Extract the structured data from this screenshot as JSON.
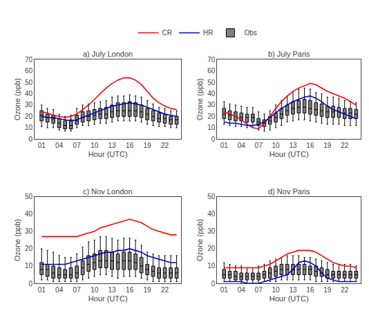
{
  "chart_data": [
    {
      "type": "line",
      "title": "a) July London",
      "xlabel": "Hour (UTC)",
      "ylabel": "Ozone (ppb)",
      "x": [
        1,
        2,
        3,
        4,
        5,
        6,
        7,
        8,
        9,
        10,
        11,
        12,
        13,
        14,
        15,
        16,
        17,
        18,
        19,
        20,
        21,
        22,
        23,
        24
      ],
      "xlim": [
        -0.2,
        24.8
      ],
      "xticks": [
        {
          "value": 1,
          "label": "01"
        },
        {
          "value": 4,
          "label": "04"
        },
        {
          "value": 7,
          "label": "07"
        },
        {
          "value": 10,
          "label": "10"
        },
        {
          "value": 13,
          "label": "13"
        },
        {
          "value": 16,
          "label": "16"
        },
        {
          "value": 19,
          "label": "19"
        },
        {
          "value": 22,
          "label": "22"
        }
      ],
      "ylim": [
        0,
        70
      ],
      "yticks": [
        0,
        10,
        20,
        30,
        40,
        50,
        60,
        70
      ],
      "grid": false,
      "series": [
        {
          "name": "CR",
          "color": "#ff0000",
          "values": [
            24,
            23,
            21,
            20,
            19,
            20,
            22,
            26,
            30,
            35,
            40,
            45,
            49,
            52,
            54,
            54,
            52,
            48,
            42,
            36,
            32,
            29,
            27,
            26
          ]
        },
        {
          "name": "HR",
          "color": "#0000cc",
          "values": [
            20,
            19,
            19,
            18,
            17,
            16,
            17,
            19,
            21,
            23,
            25,
            27,
            29,
            30,
            31,
            32,
            31,
            30,
            28,
            26,
            24,
            22,
            21,
            20
          ]
        },
        {
          "name": "Obs",
          "type": "box",
          "color": "#000000",
          "median": [
            21,
            19,
            18,
            14,
            12,
            12,
            16,
            19,
            20,
            21,
            22,
            22,
            24,
            25,
            25,
            25,
            25,
            24,
            22,
            20,
            18,
            18,
            17,
            17
          ],
          "q1": [
            16,
            15,
            14,
            10,
            9,
            9,
            13,
            15,
            16,
            17,
            18,
            18,
            19,
            20,
            20,
            20,
            20,
            19,
            17,
            16,
            15,
            14,
            13,
            13
          ],
          "q3": [
            25,
            22,
            21,
            18,
            16,
            17,
            21,
            24,
            25,
            26,
            27,
            28,
            30,
            32,
            32,
            33,
            32,
            30,
            27,
            25,
            23,
            22,
            20,
            20
          ],
          "min": [
            11,
            10,
            10,
            8,
            7,
            7,
            10,
            12,
            12,
            13,
            14,
            14,
            15,
            16,
            16,
            16,
            16,
            15,
            13,
            12,
            11,
            11,
            10,
            10
          ],
          "max": [
            30,
            27,
            26,
            22,
            20,
            21,
            27,
            30,
            31,
            32,
            33,
            34,
            37,
            38,
            38,
            39,
            38,
            37,
            34,
            31,
            28,
            27,
            25,
            25
          ]
        }
      ]
    },
    {
      "type": "line",
      "title": "b) July Paris",
      "xlabel": "Hour (UTC)",
      "ylabel": "Ozone (ppb)",
      "x": [
        1,
        2,
        3,
        4,
        5,
        6,
        7,
        8,
        9,
        10,
        11,
        12,
        13,
        14,
        15,
        16,
        17,
        18,
        19,
        20,
        21,
        22,
        23,
        24
      ],
      "xlim": [
        -0.2,
        24.8
      ],
      "xticks": [
        {
          "value": 1,
          "label": "01"
        },
        {
          "value": 4,
          "label": "04"
        },
        {
          "value": 7,
          "label": "07"
        },
        {
          "value": 10,
          "label": "10"
        },
        {
          "value": 13,
          "label": "13"
        },
        {
          "value": 16,
          "label": "16"
        },
        {
          "value": 19,
          "label": "19"
        },
        {
          "value": 22,
          "label": "22"
        }
      ],
      "ylim": [
        0,
        70
      ],
      "yticks": [
        0,
        10,
        20,
        30,
        40,
        50,
        60,
        70
      ],
      "grid": false,
      "series": [
        {
          "name": "CR",
          "color": "#ff0000",
          "values": [
            24,
            22,
            20,
            17,
            13,
            10,
            9,
            14,
            20,
            27,
            33,
            38,
            42,
            45,
            47,
            49,
            48,
            45,
            42,
            40,
            38,
            36,
            33,
            30
          ]
        },
        {
          "name": "HR",
          "color": "#0000cc",
          "values": [
            15,
            14,
            14,
            13,
            12,
            12,
            13,
            15,
            19,
            23,
            27,
            30,
            33,
            35,
            37,
            38,
            36,
            33,
            29,
            26,
            24,
            22,
            20,
            18
          ]
        },
        {
          "name": "Obs",
          "type": "box",
          "color": "#000000",
          "median": [
            22,
            21,
            20,
            19,
            19,
            19,
            15,
            14,
            16,
            19,
            22,
            25,
            27,
            28,
            28,
            27,
            26,
            25,
            24,
            24,
            24,
            23,
            23,
            22
          ],
          "q1": [
            18,
            17,
            16,
            16,
            15,
            15,
            12,
            11,
            13,
            15,
            18,
            21,
            22,
            23,
            23,
            22,
            21,
            20,
            19,
            19,
            19,
            18,
            18,
            18
          ],
          "q3": [
            27,
            25,
            24,
            23,
            22,
            22,
            18,
            17,
            20,
            23,
            27,
            30,
            33,
            34,
            35,
            34,
            32,
            31,
            29,
            29,
            28,
            27,
            27,
            26
          ],
          "min": [
            13,
            12,
            11,
            11,
            10,
            10,
            8,
            7,
            8,
            10,
            12,
            15,
            16,
            17,
            17,
            16,
            15,
            14,
            13,
            13,
            13,
            12,
            12,
            12
          ],
          "max": [
            33,
            31,
            30,
            29,
            28,
            28,
            24,
            22,
            25,
            30,
            34,
            38,
            42,
            44,
            45,
            44,
            41,
            40,
            37,
            37,
            36,
            34,
            33,
            32
          ]
        }
      ]
    },
    {
      "type": "line",
      "title": "c) Nov London",
      "xlabel": "Hour (UTC)",
      "ylabel": "Ozone (ppb)",
      "x": [
        1,
        2,
        3,
        4,
        5,
        6,
        7,
        8,
        9,
        10,
        11,
        12,
        13,
        14,
        15,
        16,
        17,
        18,
        19,
        20,
        21,
        22,
        23,
        24
      ],
      "xlim": [
        -0.2,
        24.8
      ],
      "xticks": [
        {
          "value": 1,
          "label": "01"
        },
        {
          "value": 4,
          "label": "04"
        },
        {
          "value": 7,
          "label": "07"
        },
        {
          "value": 10,
          "label": "10"
        },
        {
          "value": 13,
          "label": "13"
        },
        {
          "value": 16,
          "label": "16"
        },
        {
          "value": 19,
          "label": "19"
        },
        {
          "value": 22,
          "label": "22"
        }
      ],
      "ylim": [
        0,
        50
      ],
      "yticks": [
        0,
        10,
        20,
        30,
        40,
        50
      ],
      "grid": false,
      "series": [
        {
          "name": "CR",
          "color": "#ff0000",
          "values": [
            27,
            27,
            27,
            27,
            27,
            27,
            27,
            28,
            29,
            30,
            32,
            33,
            34,
            35,
            36,
            37,
            36,
            35,
            33,
            31,
            30,
            29,
            28,
            28
          ]
        },
        {
          "name": "HR",
          "color": "#0000cc",
          "values": [
            11,
            11,
            11,
            11,
            11,
            12,
            13,
            14,
            15,
            16,
            17,
            18,
            18,
            19,
            19,
            20,
            19,
            18,
            16,
            15,
            14,
            13,
            12,
            12
          ]
        },
        {
          "name": "Obs",
          "type": "box",
          "color": "#000000",
          "median": [
            8,
            8,
            6,
            5,
            5,
            5,
            6,
            9,
            11,
            12,
            13,
            13,
            13,
            12,
            13,
            13,
            12,
            10,
            8,
            7,
            6,
            6,
            6,
            6
          ],
          "q1": [
            5,
            4,
            3,
            3,
            3,
            3,
            3,
            5,
            7,
            8,
            9,
            9,
            8,
            8,
            8,
            8,
            8,
            6,
            5,
            4,
            3,
            3,
            3,
            3
          ],
          "q3": [
            12,
            11,
            10,
            9,
            8,
            9,
            10,
            13,
            16,
            17,
            19,
            19,
            18,
            17,
            18,
            18,
            17,
            15,
            11,
            10,
            9,
            9,
            9,
            9
          ],
          "min": [
            2,
            2,
            1,
            1,
            1,
            1,
            1,
            2,
            3,
            4,
            5,
            5,
            4,
            3,
            4,
            4,
            4,
            3,
            2,
            1,
            1,
            1,
            1,
            1
          ],
          "max": [
            20,
            19,
            18,
            16,
            15,
            15,
            17,
            21,
            24,
            25,
            27,
            27,
            26,
            25,
            26,
            26,
            25,
            22,
            18,
            17,
            16,
            16,
            16,
            16
          ]
        }
      ]
    },
    {
      "type": "line",
      "title": "d) Nov Paris",
      "xlabel": "Hour (UTC)",
      "ylabel": "Ozone (ppb)",
      "x": [
        1,
        2,
        3,
        4,
        5,
        6,
        7,
        8,
        9,
        10,
        11,
        12,
        13,
        14,
        15,
        16,
        17,
        18,
        19,
        20,
        21,
        22,
        23,
        24
      ],
      "xlim": [
        -0.2,
        24.8
      ],
      "xticks": [
        {
          "value": 1,
          "label": "01"
        },
        {
          "value": 4,
          "label": "04"
        },
        {
          "value": 7,
          "label": "07"
        },
        {
          "value": 10,
          "label": "10"
        },
        {
          "value": 13,
          "label": "13"
        },
        {
          "value": 16,
          "label": "16"
        },
        {
          "value": 19,
          "label": "19"
        },
        {
          "value": 22,
          "label": "22"
        }
      ],
      "ylim": [
        0,
        50
      ],
      "yticks": [
        0,
        10,
        20,
        30,
        40,
        50
      ],
      "grid": false,
      "series": [
        {
          "name": "CR",
          "color": "#ff0000",
          "values": [
            9,
            9,
            9,
            9,
            9,
            9,
            9,
            10,
            11,
            13,
            15,
            17,
            18,
            19,
            19,
            19,
            18,
            16,
            14,
            12,
            11,
            10,
            10,
            9
          ]
        },
        {
          "name": "HR",
          "color": "#0000cc",
          "values": [
            1,
            1,
            1,
            1,
            0,
            0,
            0,
            1,
            2,
            3,
            4,
            5,
            8,
            12,
            13,
            12,
            10,
            6,
            3,
            2,
            1,
            1,
            1,
            1
          ]
        },
        {
          "name": "Obs",
          "type": "box",
          "color": "#000000",
          "median": [
            5,
            5,
            4,
            4,
            4,
            4,
            4,
            5,
            6,
            7,
            8,
            8,
            8,
            8,
            8,
            8,
            7,
            6,
            5,
            5,
            5,
            5,
            5,
            5
          ],
          "q1": [
            3,
            3,
            2,
            2,
            2,
            2,
            2,
            3,
            3,
            4,
            5,
            5,
            5,
            5,
            5,
            5,
            4,
            4,
            3,
            3,
            3,
            3,
            3,
            3
          ],
          "q3": [
            8,
            7,
            7,
            6,
            6,
            6,
            6,
            7,
            9,
            10,
            11,
            11,
            11,
            11,
            11,
            10,
            10,
            9,
            8,
            7,
            7,
            7,
            7,
            7
          ],
          "min": [
            1,
            1,
            1,
            0,
            0,
            0,
            0,
            1,
            1,
            1,
            2,
            2,
            2,
            2,
            2,
            2,
            1,
            1,
            1,
            1,
            1,
            1,
            1,
            1
          ],
          "max": [
            12,
            11,
            10,
            10,
            9,
            9,
            10,
            11,
            13,
            14,
            15,
            16,
            16,
            16,
            15,
            15,
            14,
            13,
            12,
            11,
            11,
            11,
            11,
            10
          ]
        }
      ]
    }
  ]
}
